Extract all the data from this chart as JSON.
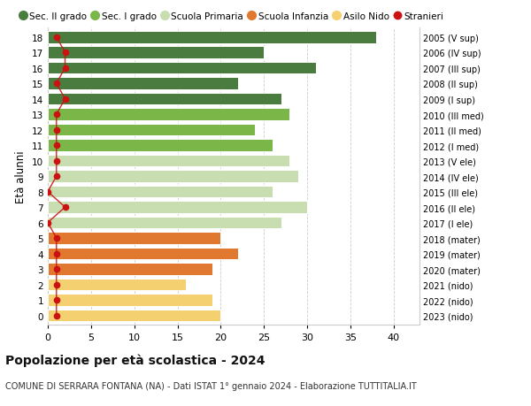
{
  "ages": [
    18,
    17,
    16,
    15,
    14,
    13,
    12,
    11,
    10,
    9,
    8,
    7,
    6,
    5,
    4,
    3,
    2,
    1,
    0
  ],
  "values": [
    38,
    25,
    31,
    22,
    27,
    28,
    24,
    26,
    28,
    29,
    26,
    30,
    27,
    20,
    22,
    19,
    16,
    19,
    20
  ],
  "stranieri": [
    1,
    2,
    2,
    1,
    2,
    1,
    1,
    1,
    1,
    1,
    0,
    2,
    0,
    1,
    1,
    1,
    1,
    1,
    1
  ],
  "right_labels": [
    "2005 (V sup)",
    "2006 (IV sup)",
    "2007 (III sup)",
    "2008 (II sup)",
    "2009 (I sup)",
    "2010 (III med)",
    "2011 (II med)",
    "2012 (I med)",
    "2013 (V ele)",
    "2014 (IV ele)",
    "2015 (III ele)",
    "2016 (II ele)",
    "2017 (I ele)",
    "2018 (mater)",
    "2019 (mater)",
    "2020 (mater)",
    "2021 (nido)",
    "2022 (nido)",
    "2023 (nido)"
  ],
  "bar_colors": [
    "#4a7c3f",
    "#4a7c3f",
    "#4a7c3f",
    "#4a7c3f",
    "#4a7c3f",
    "#7ab648",
    "#7ab648",
    "#7ab648",
    "#c8ddb0",
    "#c8ddb0",
    "#c8ddb0",
    "#c8ddb0",
    "#c8ddb0",
    "#e07830",
    "#e07830",
    "#e07830",
    "#f5d070",
    "#f5d070",
    "#f5d070"
  ],
  "legend_labels": [
    "Sec. II grado",
    "Sec. I grado",
    "Scuola Primaria",
    "Scuola Infanzia",
    "Asilo Nido",
    "Stranieri"
  ],
  "legend_colors": [
    "#4a7c3f",
    "#7ab648",
    "#c8ddb0",
    "#e07830",
    "#f5d070",
    "#cc1111"
  ],
  "stranieri_color": "#cc1111",
  "title": "Popolazione per età scolastica - 2024",
  "subtitle": "COMUNE DI SERRARA FONTANA (NA) - Dati ISTAT 1° gennaio 2024 - Elaborazione TUTTITALIA.IT",
  "ylabel": "Età alunni",
  "xlim": [
    0,
    43
  ],
  "xticks": [
    0,
    5,
    10,
    15,
    20,
    25,
    30,
    35,
    40
  ],
  "bg_color": "#ffffff",
  "grid_color": "#cccccc",
  "bar_height": 0.78
}
